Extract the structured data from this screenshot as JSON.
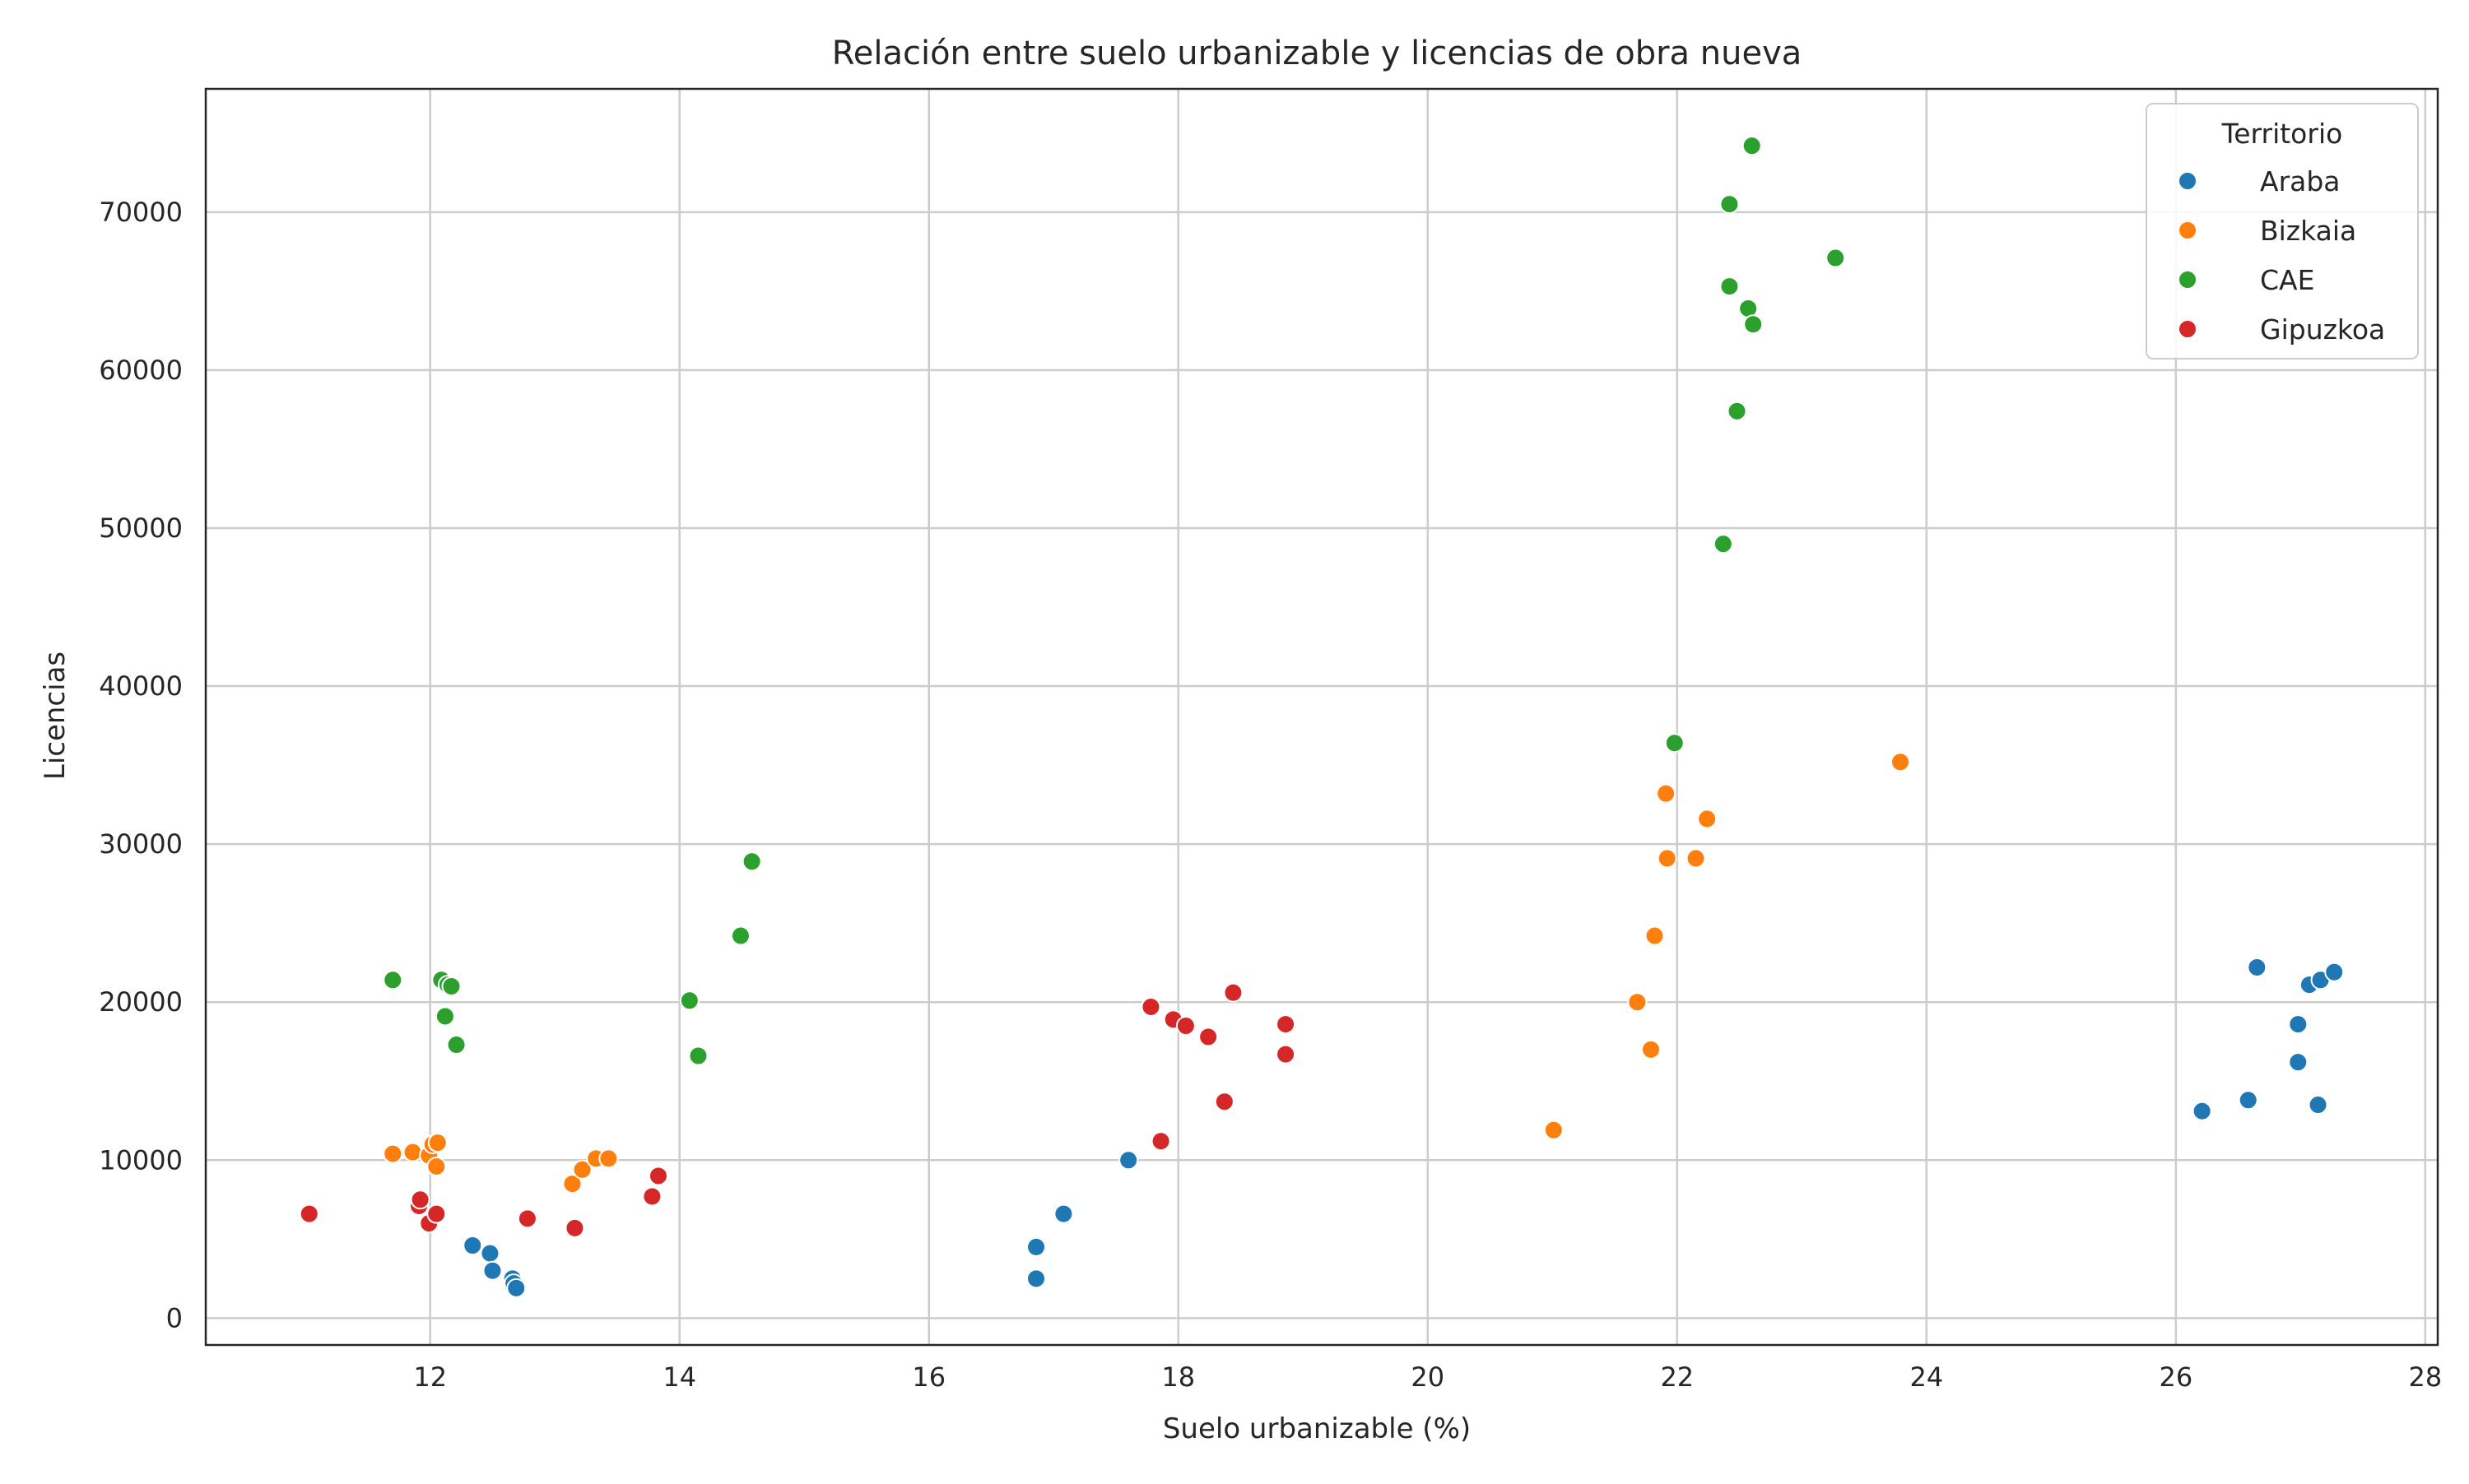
{
  "chart_data": {
    "type": "scatter",
    "title": "Relación entre suelo urbanizable y licencias de obra nueva",
    "xlabel": "Suelo urbanizable (%)",
    "ylabel": "Licencias",
    "xlim": [
      10.2,
      28.1
    ],
    "ylim": [
      -1700,
      77800
    ],
    "xticks": [
      12,
      14,
      16,
      18,
      20,
      22,
      24,
      26,
      28
    ],
    "yticks": [
      0,
      10000,
      20000,
      30000,
      40000,
      50000,
      60000,
      70000
    ],
    "xtick_labels": [
      "12",
      "14",
      "16",
      "18",
      "20",
      "22",
      "24",
      "26",
      "28"
    ],
    "ytick_labels": [
      "0",
      "10000",
      "20000",
      "30000",
      "40000",
      "50000",
      "60000",
      "70000"
    ],
    "grid": true,
    "legend": {
      "title": "Territorio",
      "placement": "top-right"
    },
    "series": [
      {
        "name": "Araba",
        "color": "#1f77b4",
        "points": [
          {
            "x": 12.34,
            "y": 4600
          },
          {
            "x": 12.48,
            "y": 4100
          },
          {
            "x": 12.5,
            "y": 3000
          },
          {
            "x": 12.66,
            "y": 2500
          },
          {
            "x": 12.67,
            "y": 2200
          },
          {
            "x": 12.69,
            "y": 1900
          },
          {
            "x": 16.86,
            "y": 4500
          },
          {
            "x": 16.86,
            "y": 2500
          },
          {
            "x": 17.08,
            "y": 6600
          },
          {
            "x": 17.6,
            "y": 10000
          },
          {
            "x": 26.21,
            "y": 13100
          },
          {
            "x": 26.58,
            "y": 13800
          },
          {
            "x": 26.65,
            "y": 22200
          },
          {
            "x": 26.98,
            "y": 16200
          },
          {
            "x": 26.98,
            "y": 18600
          },
          {
            "x": 27.07,
            "y": 21100
          },
          {
            "x": 27.14,
            "y": 13500
          },
          {
            "x": 27.16,
            "y": 21400
          },
          {
            "x": 27.27,
            "y": 21900
          }
        ]
      },
      {
        "name": "Bizkaia",
        "color": "#ff7f0e",
        "points": [
          {
            "x": 11.7,
            "y": 10400
          },
          {
            "x": 11.86,
            "y": 10500
          },
          {
            "x": 11.99,
            "y": 10300
          },
          {
            "x": 12.02,
            "y": 11000
          },
          {
            "x": 12.05,
            "y": 9600
          },
          {
            "x": 12.06,
            "y": 11100
          },
          {
            "x": 13.14,
            "y": 8500
          },
          {
            "x": 13.22,
            "y": 9400
          },
          {
            "x": 13.33,
            "y": 10100
          },
          {
            "x": 13.43,
            "y": 10100
          },
          {
            "x": 21.01,
            "y": 11900
          },
          {
            "x": 21.68,
            "y": 20000
          },
          {
            "x": 21.79,
            "y": 17000
          },
          {
            "x": 21.82,
            "y": 24200
          },
          {
            "x": 21.91,
            "y": 33200
          },
          {
            "x": 21.92,
            "y": 29100
          },
          {
            "x": 22.15,
            "y": 29100
          },
          {
            "x": 22.24,
            "y": 31600
          },
          {
            "x": 23.79,
            "y": 35200
          }
        ]
      },
      {
        "name": "CAE",
        "color": "#2ca02c",
        "points": [
          {
            "x": 11.7,
            "y": 21400
          },
          {
            "x": 12.09,
            "y": 21400
          },
          {
            "x": 12.14,
            "y": 21100
          },
          {
            "x": 12.17,
            "y": 21000
          },
          {
            "x": 12.12,
            "y": 19100
          },
          {
            "x": 12.21,
            "y": 17300
          },
          {
            "x": 14.08,
            "y": 20100
          },
          {
            "x": 14.15,
            "y": 16600
          },
          {
            "x": 14.49,
            "y": 24200
          },
          {
            "x": 14.58,
            "y": 28900
          },
          {
            "x": 21.98,
            "y": 36400
          },
          {
            "x": 22.37,
            "y": 49000
          },
          {
            "x": 22.42,
            "y": 65300
          },
          {
            "x": 22.42,
            "y": 70500
          },
          {
            "x": 22.48,
            "y": 57400
          },
          {
            "x": 22.57,
            "y": 63900
          },
          {
            "x": 22.6,
            "y": 74200
          },
          {
            "x": 22.61,
            "y": 62900
          },
          {
            "x": 23.27,
            "y": 67100
          }
        ]
      },
      {
        "name": "Gipuzkoa",
        "color": "#d62728",
        "points": [
          {
            "x": 11.03,
            "y": 6600
          },
          {
            "x": 11.91,
            "y": 7100
          },
          {
            "x": 11.92,
            "y": 7500
          },
          {
            "x": 11.99,
            "y": 6000
          },
          {
            "x": 12.05,
            "y": 6600
          },
          {
            "x": 12.78,
            "y": 6300
          },
          {
            "x": 13.16,
            "y": 5700
          },
          {
            "x": 13.78,
            "y": 7700
          },
          {
            "x": 13.83,
            "y": 9000
          },
          {
            "x": 17.78,
            "y": 19700
          },
          {
            "x": 17.86,
            "y": 11200
          },
          {
            "x": 17.96,
            "y": 18900
          },
          {
            "x": 18.06,
            "y": 18500
          },
          {
            "x": 18.24,
            "y": 17800
          },
          {
            "x": 18.37,
            "y": 13700
          },
          {
            "x": 18.44,
            "y": 20600
          },
          {
            "x": 18.86,
            "y": 18600
          },
          {
            "x": 18.86,
            "y": 16700
          }
        ]
      }
    ]
  }
}
